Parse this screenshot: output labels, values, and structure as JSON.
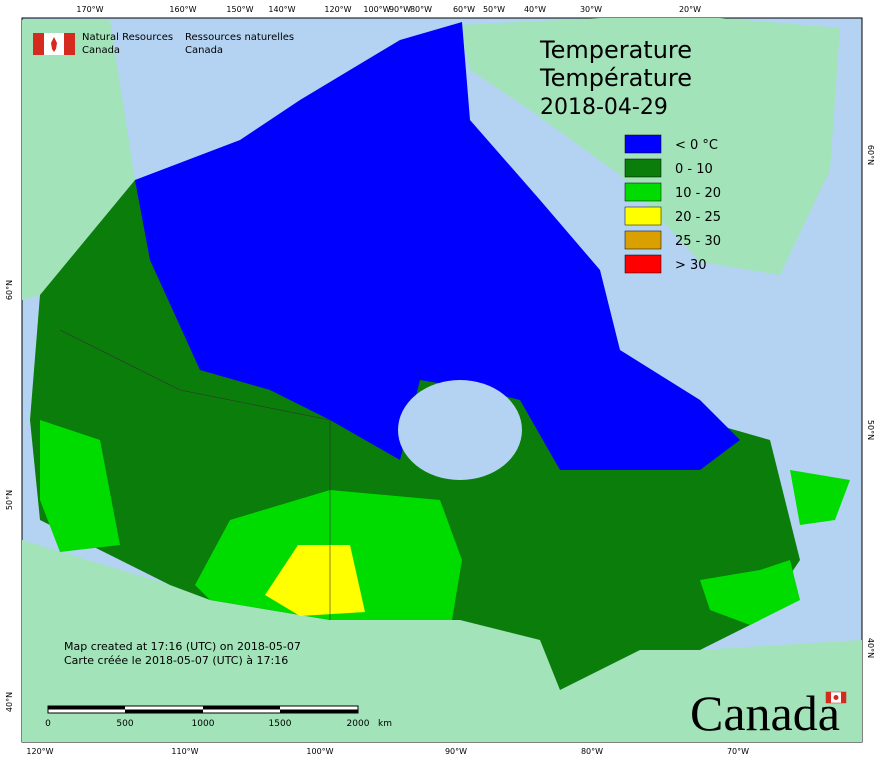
{
  "header": {
    "department_en": [
      "Natural Resources",
      "Canada"
    ],
    "department_fr": [
      "Ressources naturelles",
      "Canada"
    ]
  },
  "title": {
    "en": "Temperature",
    "fr": "Température",
    "date": "2018-04-29"
  },
  "legend": [
    {
      "label": "< 0 °C",
      "color": "#0000ff"
    },
    {
      "label": "0 - 10",
      "color": "#0a7d0a"
    },
    {
      "label": "10 - 20",
      "color": "#00dc00"
    },
    {
      "label": "20 - 25",
      "color": "#ffff00"
    },
    {
      "label": "25 - 30",
      "color": "#d9a000"
    },
    {
      "label": "> 30",
      "color": "#ff0000"
    }
  ],
  "graticule": {
    "top": [
      "170°W",
      "160°W",
      "150°W",
      "140°W",
      "120°W",
      "100°W",
      "90°W",
      "80°W",
      "60°W",
      "50°W",
      "40°W",
      "30°W",
      "20°W"
    ],
    "bottom": [
      "120°W",
      "110°W",
      "100°W",
      "90°W",
      "80°W",
      "70°W"
    ],
    "left": [
      "60°N",
      "50°N",
      "40°N"
    ],
    "right": [
      "60°N",
      "50°N",
      "40°N"
    ]
  },
  "credits": {
    "en": "Map created at 17:16 (UTC) on 2018-05-07",
    "fr": "Carte créée le 2018-05-07 (UTC) à 17:16"
  },
  "scale_bar": {
    "labels": [
      "0",
      "500",
      "1000",
      "1500",
      "2000"
    ],
    "unit": "km"
  },
  "wordmark": "Canada"
}
